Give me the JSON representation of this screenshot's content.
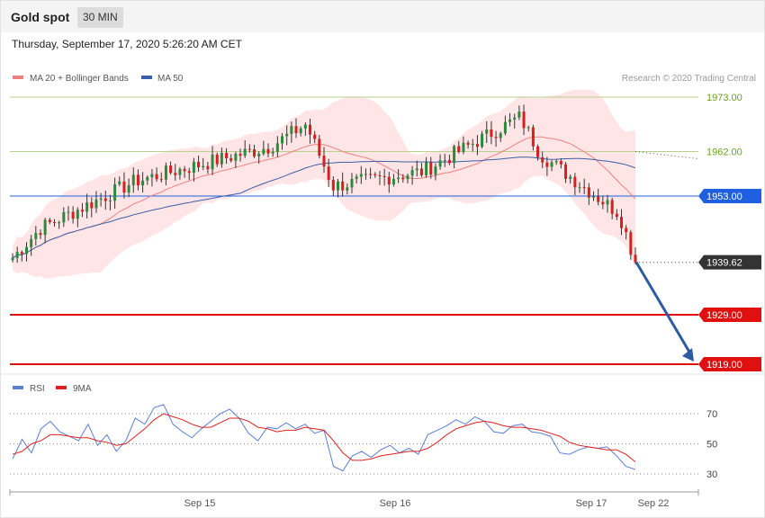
{
  "header": {
    "title": "Gold spot",
    "timeframe": "30 MIN"
  },
  "datetime": "Thursday, September 17, 2020 5:26:20 AM CET",
  "legend": {
    "ma20": "MA 20 + Bollinger Bands",
    "ma50": "MA 50",
    "credit": "Research © 2020 Trading Central"
  },
  "rsi_legend": {
    "rsi": "RSI",
    "ma9": "9MA"
  },
  "colors": {
    "ma20": "#f08080",
    "ma50": "#3a5fa8",
    "up": "#2d8a3c",
    "down": "#d42020",
    "rsi": "#5b7fd6",
    "rsi_ma": "#e02020",
    "band": "#ffe0e0",
    "green_level": "#6aa21e",
    "blue_level": "#1f5fe0",
    "red_level": "#e01010"
  },
  "chart_data": [
    {
      "type": "candlestick",
      "title": "Gold spot",
      "timeframe": "30 MIN",
      "y_ticks": [
        {
          "value": 1973.0,
          "label": "1973.00",
          "kind": "resistance"
        },
        {
          "value": 1962.0,
          "label": "1962.00",
          "kind": "resistance"
        },
        {
          "value": 1953.0,
          "label": "1953.00",
          "kind": "pivot"
        },
        {
          "value": 1939.62,
          "label": "1939.62",
          "kind": "last"
        },
        {
          "value": 1929.0,
          "label": "1929.00",
          "kind": "support"
        },
        {
          "value": 1919.0,
          "label": "1919.00",
          "kind": "support"
        }
      ],
      "x_ticks": [
        "Sep 15",
        "Sep 16",
        "Sep 17",
        "Sep 22"
      ],
      "ylim": [
        1918,
        1979
      ],
      "arrow": {
        "from_value": 1939.62,
        "to_value": 1919.0,
        "direction": "down"
      },
      "key_closes": [
        1940.5,
        1946.5,
        1956.0,
        1963.0,
        1967.5,
        1955.0,
        1958.0,
        1969.0,
        1961.5,
        1949.5,
        1939.62
      ]
    },
    {
      "type": "line",
      "title": "RSI",
      "series": [
        {
          "name": "RSI",
          "values": [
            40,
            53,
            44,
            60,
            65,
            58,
            55,
            52,
            63,
            49,
            56,
            45,
            52,
            67,
            63,
            74,
            76,
            63,
            58,
            54,
            60,
            65,
            70,
            73,
            67,
            57,
            52,
            61,
            60,
            64,
            60,
            63,
            57,
            59,
            35,
            32,
            42,
            45,
            41,
            46,
            49,
            44,
            47,
            43,
            56,
            59,
            62,
            66,
            63,
            68,
            65,
            58,
            57,
            62,
            63,
            58,
            57,
            55,
            44,
            43,
            46,
            48,
            47,
            48,
            42,
            35,
            33
          ]
        },
        {
          "name": "9MA",
          "values": [
            43,
            45,
            50,
            52,
            56,
            56,
            55,
            54,
            54,
            52,
            51,
            49,
            50,
            55,
            60,
            66,
            70,
            68,
            66,
            63,
            61,
            61,
            64,
            67,
            67,
            65,
            61,
            60,
            58,
            59,
            59,
            61,
            60,
            59,
            52,
            44,
            39,
            39,
            40,
            42,
            43,
            44,
            45,
            45,
            47,
            51,
            56,
            60,
            62,
            64,
            65,
            64,
            62,
            61,
            61,
            60,
            59,
            57,
            55,
            51,
            49,
            48,
            47,
            46,
            46,
            43,
            38
          ]
        }
      ],
      "y_ticks": [
        "70",
        "50",
        "30"
      ],
      "ylim": [
        20,
        80
      ]
    }
  ]
}
